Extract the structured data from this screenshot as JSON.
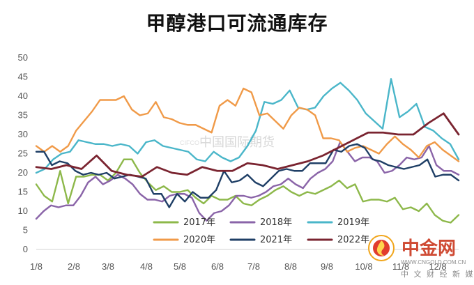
{
  "window": {
    "title": "甲醇港口可流通库存"
  },
  "chart_data": {
    "type": "line",
    "title": "甲醇港口可流通库存",
    "x_labels": [
      "1/8",
      "2/8",
      "3/8",
      "4/8",
      "5/8",
      "6/8",
      "7/8",
      "8/8",
      "9/8",
      "10/8",
      "11/8",
      "12/8"
    ],
    "ylim": [
      0,
      50
    ],
    "yticks": [
      0,
      5,
      10,
      15,
      20,
      25,
      30,
      35,
      40,
      45,
      50
    ],
    "grid": false,
    "legend_position": "bottom",
    "series": [
      {
        "name": "2017年",
        "color": "#8db84a",
        "values": [
          17,
          14,
          12.5,
          20.5,
          12,
          19,
          19,
          19.5,
          19.5,
          18,
          20,
          23.5,
          23.5,
          20,
          17.5,
          15.5,
          16.5,
          15,
          15,
          15.5,
          13.5,
          12,
          14,
          13,
          13,
          14,
          12,
          11.5,
          13,
          14,
          15.5,
          16.5,
          15,
          14,
          15,
          14.5,
          15.5,
          16.5,
          18,
          16,
          17,
          12.5,
          13,
          13,
          12.5,
          13.5,
          10.5,
          11,
          10,
          12,
          9,
          7.5,
          7,
          9
        ]
      },
      {
        "name": "2018年",
        "color": "#8a64a8",
        "values": [
          8,
          10,
          11.5,
          11,
          11.5,
          11.5,
          14,
          17.5,
          19,
          17,
          18,
          19.5,
          18.5,
          17,
          14.5,
          13,
          13,
          12.5,
          14,
          14.5,
          14.5,
          13.5,
          9.5,
          7.5,
          9.5,
          10,
          11.5,
          14,
          14,
          13.5,
          14,
          15,
          16.5,
          17,
          18.5,
          17,
          16,
          18.5,
          20,
          21,
          23,
          28,
          25.5,
          23,
          24,
          24,
          23,
          20,
          20.5,
          22,
          24,
          23.5,
          24,
          27,
          22,
          20.5,
          20.5,
          19.5
        ]
      },
      {
        "name": "2019年",
        "color": "#4ab6c9",
        "values": [
          20,
          21,
          23.5,
          25,
          25.5,
          28.5,
          28,
          27.5,
          27.5,
          27,
          27.5,
          27,
          25,
          28,
          28.5,
          27,
          26.5,
          26,
          25.5,
          23.5,
          23,
          25.5,
          24,
          23,
          24,
          27,
          31,
          38.5,
          38,
          39,
          41.5,
          37,
          36.5,
          37,
          40,
          42,
          43.5,
          41.5,
          39,
          35.5,
          33.5,
          31.5,
          44.5,
          34.5,
          36,
          38,
          32,
          31,
          29,
          27.5,
          23.5
        ]
      },
      {
        "name": "2020年",
        "color": "#f09a48",
        "values": [
          27,
          25.5,
          27,
          25.5,
          27,
          31,
          33.5,
          36,
          39,
          39,
          39,
          40,
          36.5,
          35,
          35.5,
          38.5,
          34.5,
          34,
          33,
          32.5,
          32.5,
          31.5,
          30.5,
          37.5,
          39,
          37.5,
          42,
          41,
          35,
          35.5,
          33.5,
          31.5,
          35,
          37,
          36.5,
          35,
          29,
          29,
          28.5,
          25.5,
          26.5,
          27,
          26,
          25,
          27.5,
          29.5,
          27.5,
          26,
          24,
          27,
          28,
          26,
          24.5,
          23
        ]
      },
      {
        "name": "2021年",
        "color": "#1f3f66",
        "values": [
          25.5,
          25.5,
          22,
          23,
          22.5,
          20.5,
          19.5,
          20,
          19.5,
          20,
          18.5,
          19,
          19.5,
          19,
          18.5,
          14.5,
          14.5,
          11,
          14.5,
          12.5,
          15,
          13.5,
          13.5,
          15.5,
          20.5,
          17.5,
          18,
          19.5,
          17.5,
          16.5,
          18.5,
          20.5,
          21,
          20.5,
          20.5,
          22.5,
          22.5,
          22.5,
          26,
          25.5,
          27,
          27.5,
          26.5,
          23.5,
          23,
          22,
          21.5,
          21,
          21.5,
          22,
          23.5,
          19,
          19.5,
          19.5,
          18
        ]
      },
      {
        "name": "2022年",
        "color": "#7a2430",
        "values": [
          21.5,
          21,
          22,
          21,
          24.5,
          20.5,
          19.5,
          19,
          21.5,
          20,
          19.5,
          21.5,
          20.5,
          20.5,
          22.5,
          22,
          21,
          22,
          23,
          24.5,
          26.5,
          28.5,
          30.5,
          30.5,
          30,
          30,
          33,
          35.5,
          30
        ]
      }
    ]
  },
  "watermark": {
    "text": "中国国际期货",
    "small": "CIFCO"
  },
  "branding": {
    "logo_name": "中金网",
    "logo_sub": "中 文 财 经 新 媒 体",
    "logo_url": "WWW.CNGOLD.COM.CN"
  }
}
